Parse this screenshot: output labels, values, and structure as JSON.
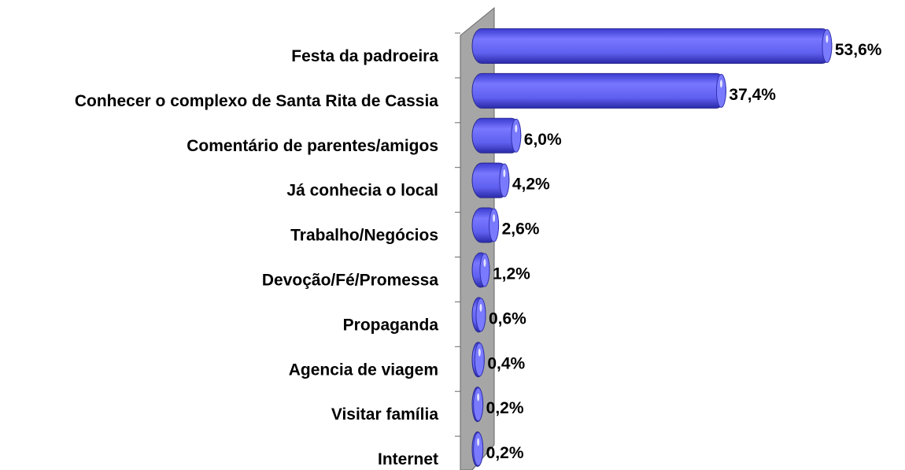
{
  "chart_data": {
    "type": "bar",
    "orientation": "horizontal",
    "categories": [
      "Festa da padroeira",
      "Conhecer o complexo de Santa Rita de Cassia",
      "Comentário de parentes/amigos",
      "Já conhecia o local",
      "Trabalho/Negócios",
      "Devoção/Fé/Promessa",
      "Propaganda",
      "Agencia de viagem",
      "Visitar família",
      "Internet"
    ],
    "values": [
      53.6,
      37.4,
      6.0,
      4.2,
      2.6,
      1.2,
      0.6,
      0.4,
      0.2,
      0.2
    ],
    "value_labels": [
      "53,6%",
      "37,4%",
      "6,0%",
      "4,2%",
      "2,6%",
      "1,2%",
      "0,6%",
      "0,4%",
      "0,2%",
      "0,2%"
    ],
    "color": "#6666ff"
  }
}
